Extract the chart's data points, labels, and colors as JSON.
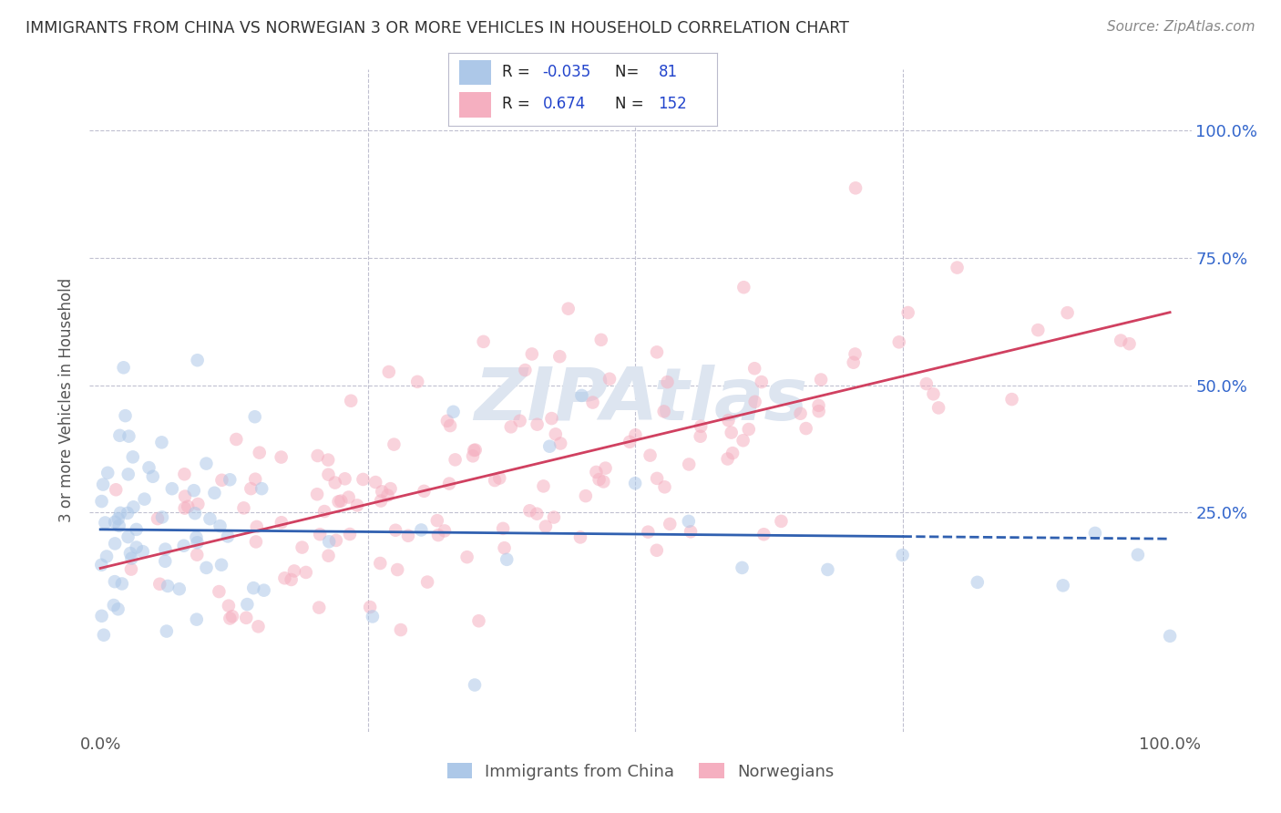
{
  "title": "IMMIGRANTS FROM CHINA VS NORWEGIAN 3 OR MORE VEHICLES IN HOUSEHOLD CORRELATION CHART",
  "source": "Source: ZipAtlas.com",
  "ylabel": "3 or more Vehicles in Household",
  "blue_R": -0.035,
  "blue_N": 81,
  "pink_R": 0.674,
  "pink_N": 152,
  "blue_color": "#adc8e8",
  "pink_color": "#f5afc0",
  "blue_line_color": "#3060b0",
  "pink_line_color": "#d04060",
  "background_color": "#ffffff",
  "grid_color": "#c0c0d0",
  "title_color": "#333333",
  "watermark_color": "#dde5f0",
  "legend_blue_label": "Immigrants from China",
  "legend_pink_label": "Norwegians",
  "dot_size": 110,
  "dot_alpha": 0.55,
  "ylim_min": -0.18,
  "ylim_max": 1.12,
  "xlim_min": -0.01,
  "xlim_max": 1.02
}
